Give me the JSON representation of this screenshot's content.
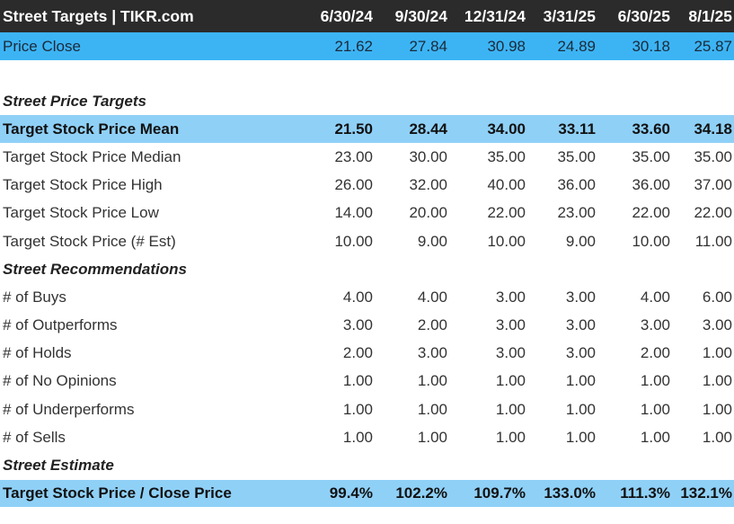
{
  "header": {
    "title": "Street Targets | TIKR.com",
    "dates": [
      "6/30/24",
      "9/30/24",
      "12/31/24",
      "3/31/25",
      "6/30/25",
      "8/1/25"
    ]
  },
  "price_close": {
    "label": "Price Close",
    "values": [
      "21.62",
      "27.84",
      "30.98",
      "24.89",
      "30.18",
      "25.87"
    ]
  },
  "targets": {
    "section_label": "Street Price Targets",
    "rows": [
      {
        "label": "Target Stock Price Mean",
        "values": [
          "21.50",
          "28.44",
          "34.00",
          "33.11",
          "33.60",
          "34.18"
        ]
      },
      {
        "label": "Target Stock Price Median",
        "values": [
          "23.00",
          "30.00",
          "35.00",
          "35.00",
          "35.00",
          "35.00"
        ]
      },
      {
        "label": "Target Stock Price High",
        "values": [
          "26.00",
          "32.00",
          "40.00",
          "36.00",
          "36.00",
          "37.00"
        ]
      },
      {
        "label": "Target Stock Price Low",
        "values": [
          "14.00",
          "20.00",
          "22.00",
          "23.00",
          "22.00",
          "22.00"
        ]
      },
      {
        "label": "Target Stock Price (# Est)",
        "values": [
          "10.00",
          "9.00",
          "10.00",
          "9.00",
          "10.00",
          "11.00"
        ]
      }
    ]
  },
  "recommendations": {
    "section_label": "Street Recommendations",
    "rows": [
      {
        "label": "# of Buys",
        "values": [
          "4.00",
          "4.00",
          "3.00",
          "3.00",
          "4.00",
          "6.00"
        ]
      },
      {
        "label": "# of Outperforms",
        "values": [
          "3.00",
          "2.00",
          "3.00",
          "3.00",
          "3.00",
          "3.00"
        ]
      },
      {
        "label": "# of Holds",
        "values": [
          "2.00",
          "3.00",
          "3.00",
          "3.00",
          "2.00",
          "1.00"
        ]
      },
      {
        "label": "# of No Opinions",
        "values": [
          "1.00",
          "1.00",
          "1.00",
          "1.00",
          "1.00",
          "1.00"
        ]
      },
      {
        "label": "# of Underperforms",
        "values": [
          "1.00",
          "1.00",
          "1.00",
          "1.00",
          "1.00",
          "1.00"
        ]
      },
      {
        "label": "# of Sells",
        "values": [
          "1.00",
          "1.00",
          "1.00",
          "1.00",
          "1.00",
          "1.00"
        ]
      }
    ]
  },
  "estimate": {
    "section_label": "Street Estimate",
    "rows": [
      {
        "label": "Target Stock Price / Close Price",
        "values": [
          "99.4%",
          "102.2%",
          "109.7%",
          "133.0%",
          "111.3%",
          "132.1%"
        ]
      }
    ]
  },
  "colors": {
    "header_bg": "#2b2b2b",
    "price_row_bg": "#3cb4f4",
    "highlight_row_bg": "#8fd0f7"
  }
}
